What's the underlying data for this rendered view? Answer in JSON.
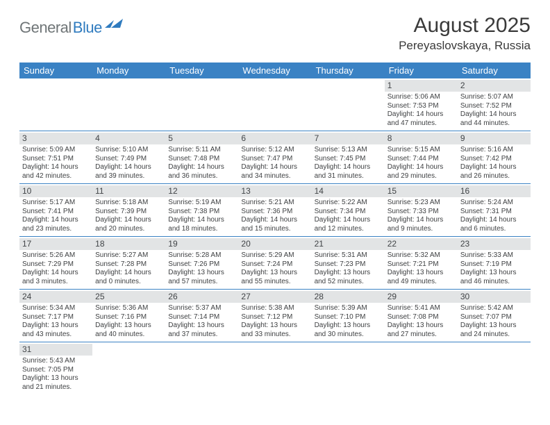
{
  "logo": {
    "gray": "General",
    "blue": "Blue"
  },
  "title": "August 2025",
  "location": "Pereyaslovskaya, Russia",
  "colors": {
    "header_bg": "#3a82c4",
    "header_text": "#ffffff",
    "daynum_bg": "#e2e4e5",
    "rule": "#3a82c4",
    "logo_gray": "#6f7577",
    "logo_blue": "#2f7bbf"
  },
  "weekdays": [
    "Sunday",
    "Monday",
    "Tuesday",
    "Wednesday",
    "Thursday",
    "Friday",
    "Saturday"
  ],
  "weeks": [
    [
      {
        "blank": true
      },
      {
        "blank": true
      },
      {
        "blank": true
      },
      {
        "blank": true
      },
      {
        "blank": true
      },
      {
        "n": "1",
        "sr": "Sunrise: 5:06 AM",
        "ss": "Sunset: 7:53 PM",
        "d1": "Daylight: 14 hours",
        "d2": "and 47 minutes."
      },
      {
        "n": "2",
        "sr": "Sunrise: 5:07 AM",
        "ss": "Sunset: 7:52 PM",
        "d1": "Daylight: 14 hours",
        "d2": "and 44 minutes."
      }
    ],
    [
      {
        "n": "3",
        "sr": "Sunrise: 5:09 AM",
        "ss": "Sunset: 7:51 PM",
        "d1": "Daylight: 14 hours",
        "d2": "and 42 minutes."
      },
      {
        "n": "4",
        "sr": "Sunrise: 5:10 AM",
        "ss": "Sunset: 7:49 PM",
        "d1": "Daylight: 14 hours",
        "d2": "and 39 minutes."
      },
      {
        "n": "5",
        "sr": "Sunrise: 5:11 AM",
        "ss": "Sunset: 7:48 PM",
        "d1": "Daylight: 14 hours",
        "d2": "and 36 minutes."
      },
      {
        "n": "6",
        "sr": "Sunrise: 5:12 AM",
        "ss": "Sunset: 7:47 PM",
        "d1": "Daylight: 14 hours",
        "d2": "and 34 minutes."
      },
      {
        "n": "7",
        "sr": "Sunrise: 5:13 AM",
        "ss": "Sunset: 7:45 PM",
        "d1": "Daylight: 14 hours",
        "d2": "and 31 minutes."
      },
      {
        "n": "8",
        "sr": "Sunrise: 5:15 AM",
        "ss": "Sunset: 7:44 PM",
        "d1": "Daylight: 14 hours",
        "d2": "and 29 minutes."
      },
      {
        "n": "9",
        "sr": "Sunrise: 5:16 AM",
        "ss": "Sunset: 7:42 PM",
        "d1": "Daylight: 14 hours",
        "d2": "and 26 minutes."
      }
    ],
    [
      {
        "n": "10",
        "sr": "Sunrise: 5:17 AM",
        "ss": "Sunset: 7:41 PM",
        "d1": "Daylight: 14 hours",
        "d2": "and 23 minutes."
      },
      {
        "n": "11",
        "sr": "Sunrise: 5:18 AM",
        "ss": "Sunset: 7:39 PM",
        "d1": "Daylight: 14 hours",
        "d2": "and 20 minutes."
      },
      {
        "n": "12",
        "sr": "Sunrise: 5:19 AM",
        "ss": "Sunset: 7:38 PM",
        "d1": "Daylight: 14 hours",
        "d2": "and 18 minutes."
      },
      {
        "n": "13",
        "sr": "Sunrise: 5:21 AM",
        "ss": "Sunset: 7:36 PM",
        "d1": "Daylight: 14 hours",
        "d2": "and 15 minutes."
      },
      {
        "n": "14",
        "sr": "Sunrise: 5:22 AM",
        "ss": "Sunset: 7:34 PM",
        "d1": "Daylight: 14 hours",
        "d2": "and 12 minutes."
      },
      {
        "n": "15",
        "sr": "Sunrise: 5:23 AM",
        "ss": "Sunset: 7:33 PM",
        "d1": "Daylight: 14 hours",
        "d2": "and 9 minutes."
      },
      {
        "n": "16",
        "sr": "Sunrise: 5:24 AM",
        "ss": "Sunset: 7:31 PM",
        "d1": "Daylight: 14 hours",
        "d2": "and 6 minutes."
      }
    ],
    [
      {
        "n": "17",
        "sr": "Sunrise: 5:26 AM",
        "ss": "Sunset: 7:29 PM",
        "d1": "Daylight: 14 hours",
        "d2": "and 3 minutes."
      },
      {
        "n": "18",
        "sr": "Sunrise: 5:27 AM",
        "ss": "Sunset: 7:28 PM",
        "d1": "Daylight: 14 hours",
        "d2": "and 0 minutes."
      },
      {
        "n": "19",
        "sr": "Sunrise: 5:28 AM",
        "ss": "Sunset: 7:26 PM",
        "d1": "Daylight: 13 hours",
        "d2": "and 57 minutes."
      },
      {
        "n": "20",
        "sr": "Sunrise: 5:29 AM",
        "ss": "Sunset: 7:24 PM",
        "d1": "Daylight: 13 hours",
        "d2": "and 55 minutes."
      },
      {
        "n": "21",
        "sr": "Sunrise: 5:31 AM",
        "ss": "Sunset: 7:23 PM",
        "d1": "Daylight: 13 hours",
        "d2": "and 52 minutes."
      },
      {
        "n": "22",
        "sr": "Sunrise: 5:32 AM",
        "ss": "Sunset: 7:21 PM",
        "d1": "Daylight: 13 hours",
        "d2": "and 49 minutes."
      },
      {
        "n": "23",
        "sr": "Sunrise: 5:33 AM",
        "ss": "Sunset: 7:19 PM",
        "d1": "Daylight: 13 hours",
        "d2": "and 46 minutes."
      }
    ],
    [
      {
        "n": "24",
        "sr": "Sunrise: 5:34 AM",
        "ss": "Sunset: 7:17 PM",
        "d1": "Daylight: 13 hours",
        "d2": "and 43 minutes."
      },
      {
        "n": "25",
        "sr": "Sunrise: 5:36 AM",
        "ss": "Sunset: 7:16 PM",
        "d1": "Daylight: 13 hours",
        "d2": "and 40 minutes."
      },
      {
        "n": "26",
        "sr": "Sunrise: 5:37 AM",
        "ss": "Sunset: 7:14 PM",
        "d1": "Daylight: 13 hours",
        "d2": "and 37 minutes."
      },
      {
        "n": "27",
        "sr": "Sunrise: 5:38 AM",
        "ss": "Sunset: 7:12 PM",
        "d1": "Daylight: 13 hours",
        "d2": "and 33 minutes."
      },
      {
        "n": "28",
        "sr": "Sunrise: 5:39 AM",
        "ss": "Sunset: 7:10 PM",
        "d1": "Daylight: 13 hours",
        "d2": "and 30 minutes."
      },
      {
        "n": "29",
        "sr": "Sunrise: 5:41 AM",
        "ss": "Sunset: 7:08 PM",
        "d1": "Daylight: 13 hours",
        "d2": "and 27 minutes."
      },
      {
        "n": "30",
        "sr": "Sunrise: 5:42 AM",
        "ss": "Sunset: 7:07 PM",
        "d1": "Daylight: 13 hours",
        "d2": "and 24 minutes."
      }
    ],
    [
      {
        "n": "31",
        "sr": "Sunrise: 5:43 AM",
        "ss": "Sunset: 7:05 PM",
        "d1": "Daylight: 13 hours",
        "d2": "and 21 minutes."
      },
      {
        "blank": true
      },
      {
        "blank": true
      },
      {
        "blank": true
      },
      {
        "blank": true
      },
      {
        "blank": true
      },
      {
        "blank": true
      }
    ]
  ]
}
